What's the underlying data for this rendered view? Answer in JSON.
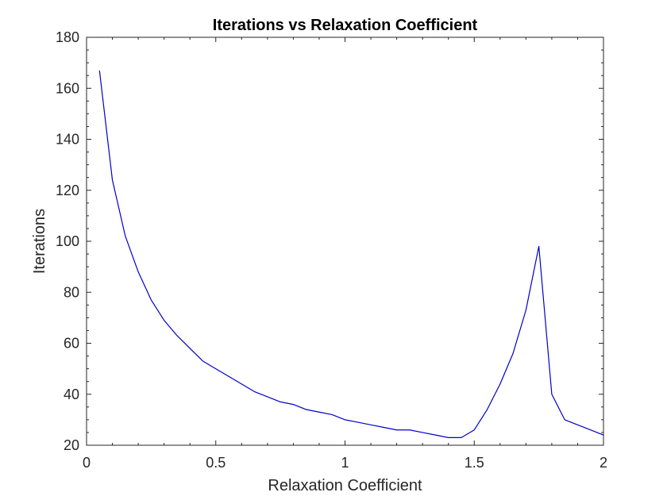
{
  "chart_data": {
    "type": "line",
    "title": "Iterations vs Relaxation Coefficient",
    "xlabel": "Relaxation Coefficient",
    "ylabel": "Iterations",
    "xlim": [
      0,
      2
    ],
    "ylim": [
      20,
      180
    ],
    "xticks": [
      0,
      0.5,
      1,
      1.5,
      2
    ],
    "xtick_labels": [
      "0",
      "0.5",
      "1",
      "1.5",
      "2"
    ],
    "yticks": [
      20,
      40,
      60,
      80,
      100,
      120,
      140,
      160,
      180
    ],
    "ytick_labels": [
      "20",
      "40",
      "60",
      "80",
      "100",
      "120",
      "140",
      "160",
      "180"
    ],
    "grid": true,
    "series": [
      {
        "name": "Iterations",
        "color": "#0000cc",
        "x": [
          0.05,
          0.1,
          0.15,
          0.2,
          0.25,
          0.3,
          0.35,
          0.4,
          0.45,
          0.5,
          0.55,
          0.6,
          0.65,
          0.7,
          0.75,
          0.8,
          0.85,
          0.9,
          0.95,
          1.0,
          1.05,
          1.1,
          1.15,
          1.2,
          1.25,
          1.3,
          1.35,
          1.4,
          1.45,
          1.5,
          1.55,
          1.6,
          1.65,
          1.7,
          1.75,
          1.8,
          1.85,
          1.9,
          1.95,
          2.0
        ],
        "y": [
          167,
          124,
          102,
          88,
          77,
          69,
          63,
          58,
          53,
          50,
          47,
          44,
          41,
          39,
          37,
          36,
          34,
          33,
          32,
          30,
          29,
          28,
          27,
          26,
          26,
          25,
          24,
          23,
          23,
          26,
          34,
          44,
          56,
          73,
          98,
          40,
          30,
          28,
          26,
          24
        ]
      }
    ]
  }
}
